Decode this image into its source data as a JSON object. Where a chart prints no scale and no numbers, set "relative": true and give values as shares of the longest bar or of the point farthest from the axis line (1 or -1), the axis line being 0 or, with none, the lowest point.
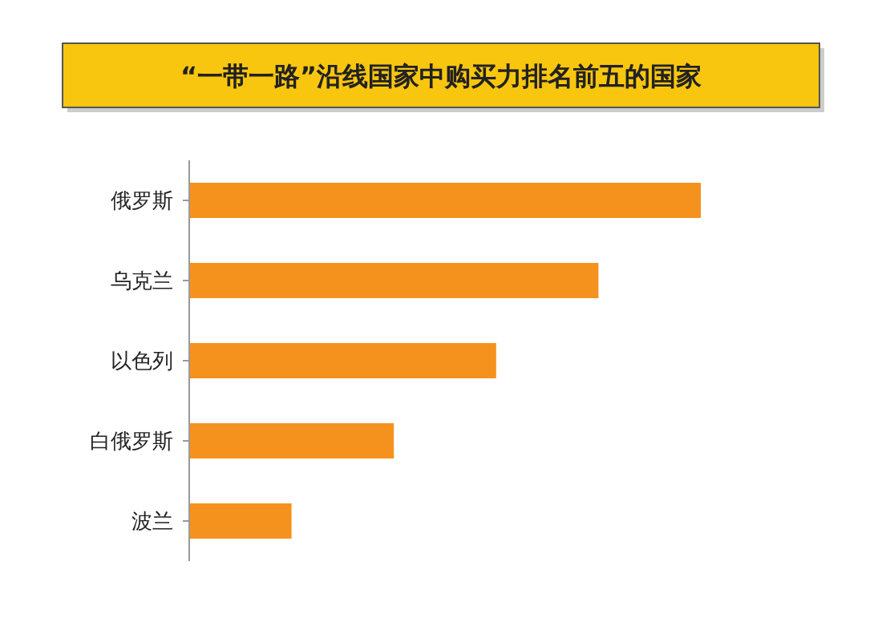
{
  "chart_data": {
    "type": "bar",
    "orientation": "horizontal",
    "relative": true,
    "title": "“一带一路”沿线国家中购买力排名前五的国家",
    "categories": [
      "俄罗斯",
      "乌克兰",
      "以色列",
      "白俄罗斯",
      "波兰"
    ],
    "values": [
      1,
      0.8,
      0.6,
      0.4,
      0.2
    ],
    "color": "#f5921e"
  }
}
